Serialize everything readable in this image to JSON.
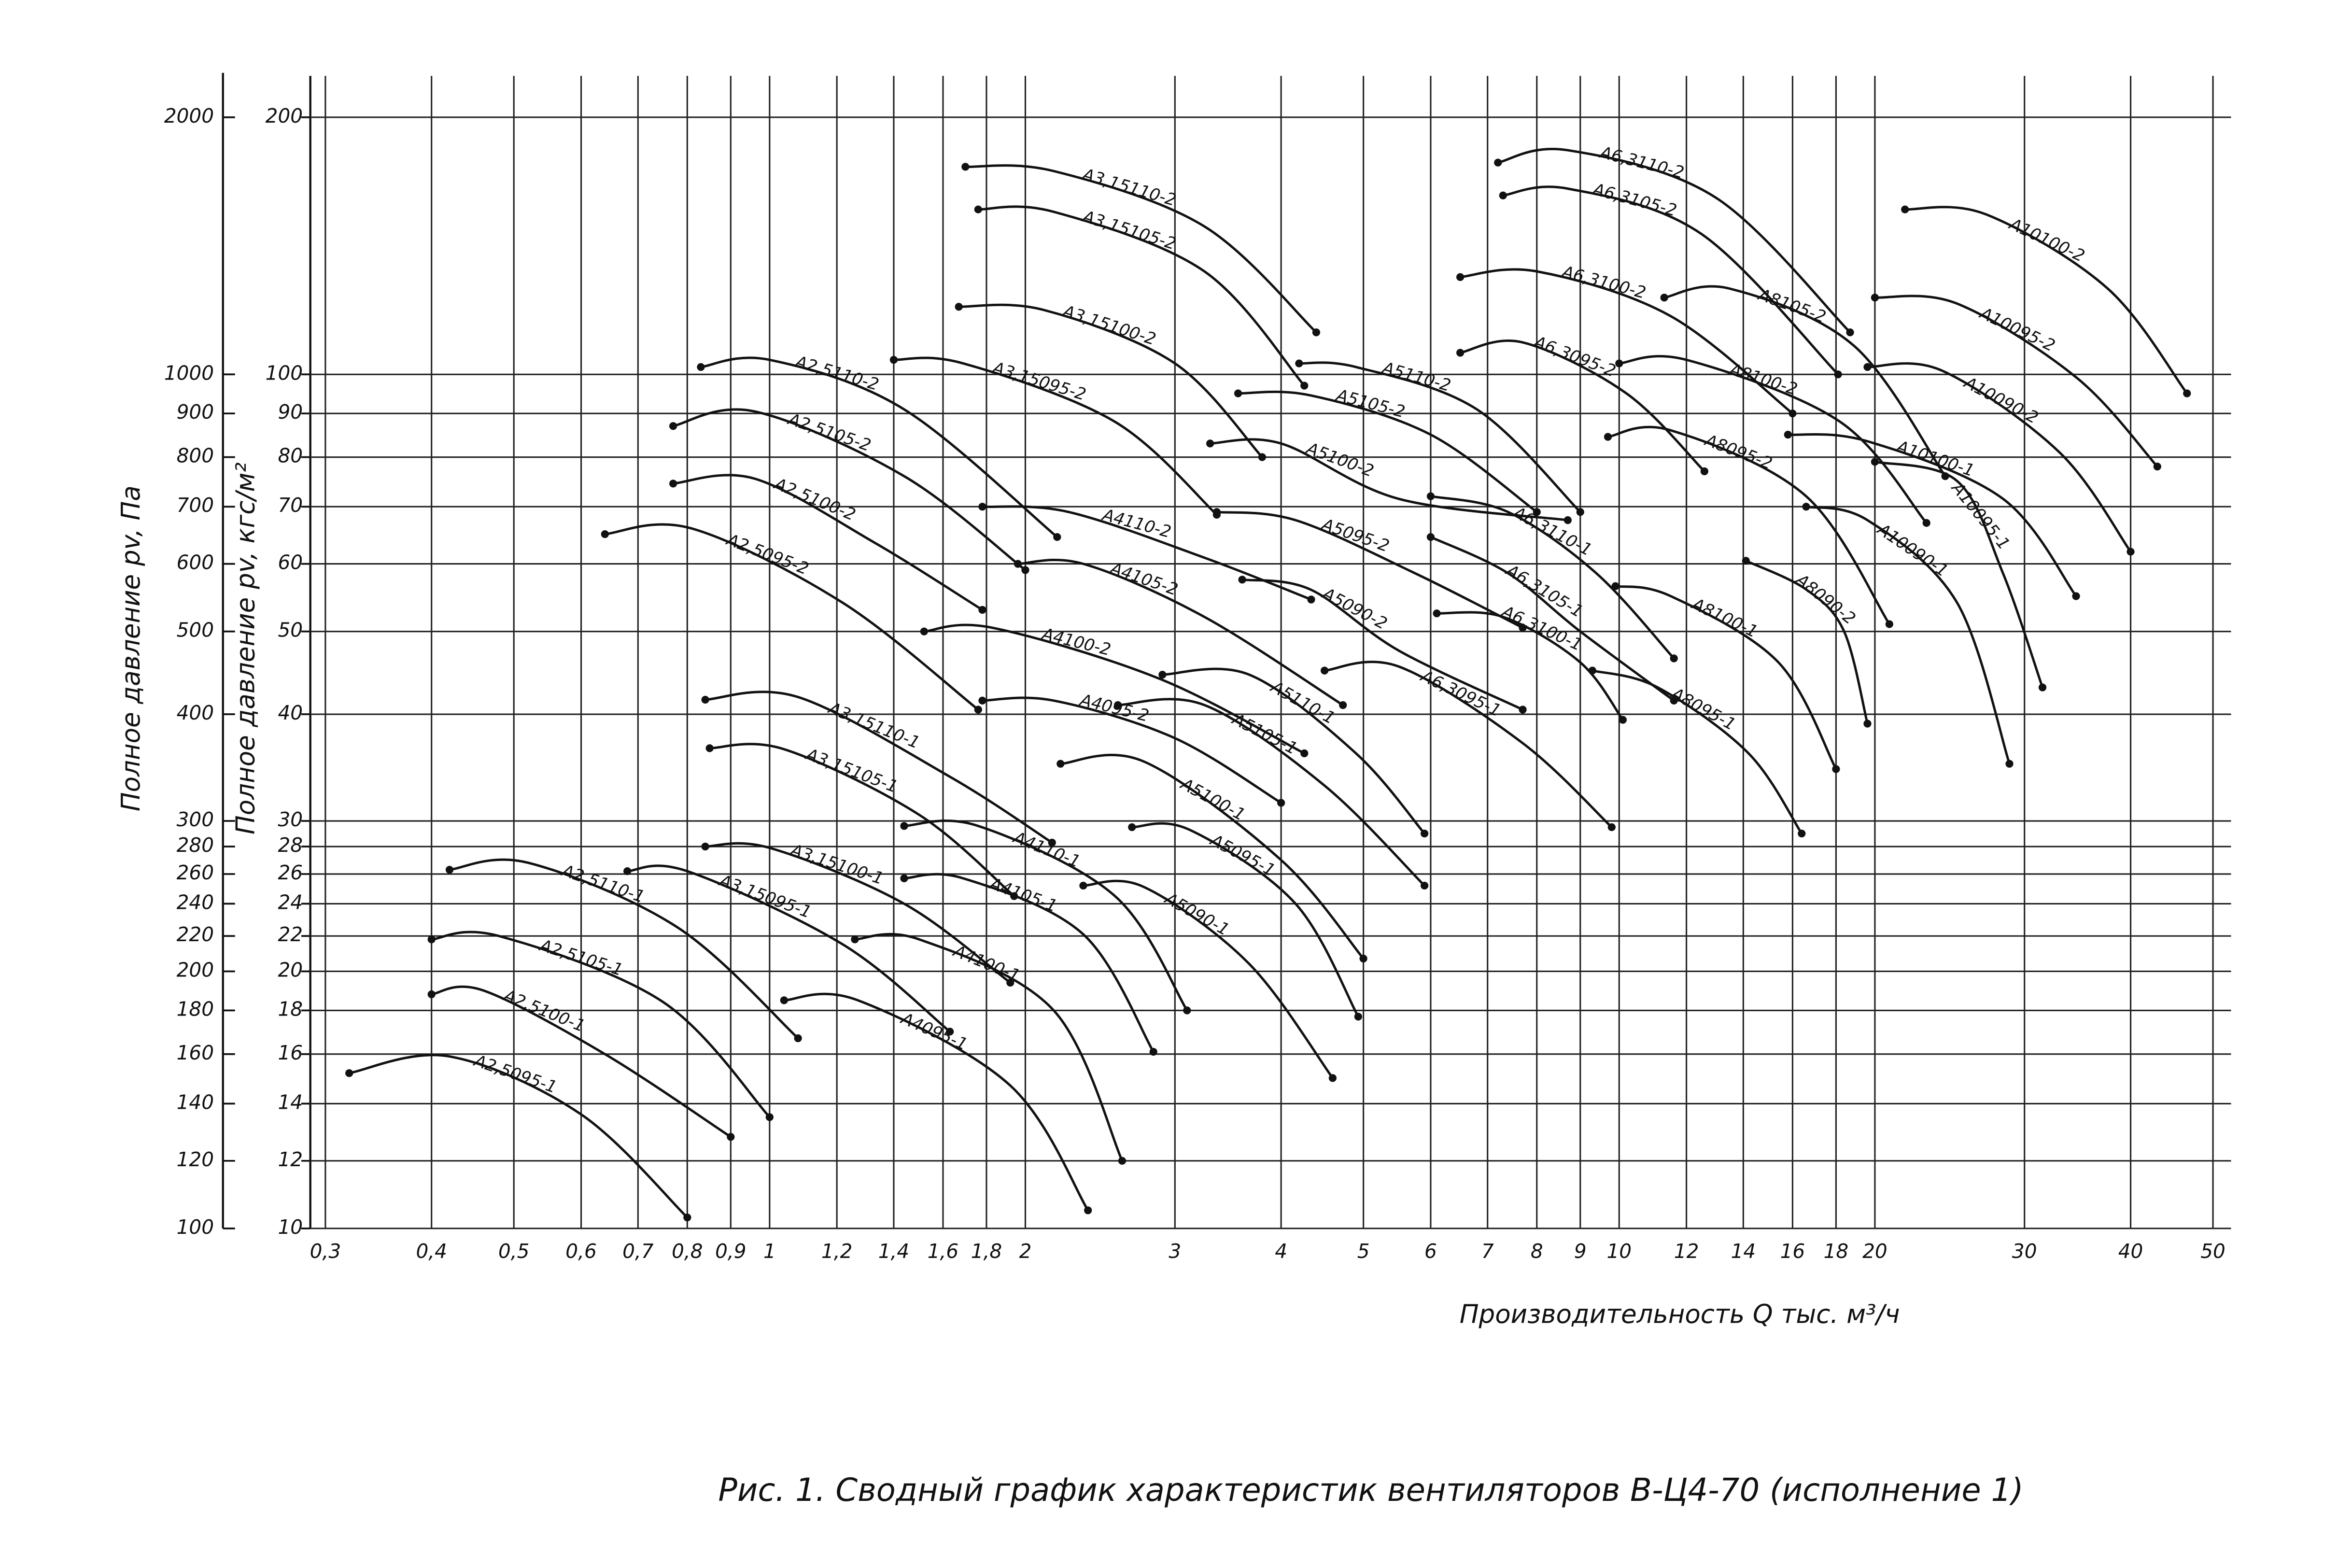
{
  "chart_data": {
    "type": "line",
    "caption": "Рис. 1. Сводный график характеристик вентиляторов В-Ц4-70 (исполнение 1)",
    "x_label": "Производительность Q тыс. м³/ч",
    "y_label": "Полное давление pv, Па",
    "y2_label": "Полное давление pv, кгс/м²",
    "xlog": true,
    "ylog": true,
    "grid": true,
    "color": "#111111",
    "xlim": [
      0.3,
      50
    ],
    "xticks": [
      {
        "value": 0.3,
        "label": "0,3"
      },
      {
        "value": 0.4,
        "label": "0,4"
      },
      {
        "value": 0.5,
        "label": "0,5"
      },
      {
        "value": 0.6,
        "label": "0,6"
      },
      {
        "value": 0.7,
        "label": "0,7"
      },
      {
        "value": 0.8,
        "label": "0,8"
      },
      {
        "value": 0.9,
        "label": "0,9"
      },
      1,
      {
        "value": 1.2,
        "label": "1,2"
      },
      {
        "value": 1.4,
        "label": "1,4"
      },
      {
        "value": 1.6,
        "label": "1,6"
      },
      {
        "value": 1.8,
        "label": "1,8"
      },
      2,
      3,
      4,
      5,
      6,
      7,
      8,
      9,
      10,
      12,
      14,
      16,
      18,
      20,
      30,
      40,
      50
    ],
    "ylim": [
      100,
      2200
    ],
    "yticks": [
      100,
      120,
      140,
      160,
      180,
      200,
      220,
      240,
      260,
      280,
      300,
      400,
      500,
      600,
      700,
      800,
      900,
      1000,
      2000
    ],
    "y2lim": [
      10,
      220
    ],
    "y2ticks": [
      10,
      12,
      14,
      16,
      18,
      20,
      22,
      24,
      26,
      28,
      30,
      40,
      50,
      60,
      70,
      80,
      90,
      100,
      200
    ],
    "series": [
      {
        "name": "А2,5095-1",
        "x": [
          0.32,
          0.42,
          0.6,
          0.8
        ],
        "values": [
          152,
          159,
          136,
          103
        ]
      },
      {
        "name": "А2,5100-1",
        "x": [
          0.4,
          0.46,
          0.64,
          0.9
        ],
        "values": [
          188,
          190,
          160,
          128
        ]
      },
      {
        "name": "А2,5105-1",
        "x": [
          0.4,
          0.48,
          0.75,
          1.0
        ],
        "values": [
          218,
          220,
          184,
          135
        ]
      },
      {
        "name": "А2,5110-1",
        "x": [
          0.42,
          0.52,
          0.78,
          1.08
        ],
        "values": [
          263,
          268,
          225,
          167
        ]
      },
      {
        "name": "А3,15095-1",
        "x": [
          0.68,
          0.8,
          1.22,
          1.63
        ],
        "values": [
          262,
          262,
          215,
          170
        ]
      },
      {
        "name": "А3,15100-1",
        "x": [
          0.84,
          1.0,
          1.44,
          1.92
        ],
        "values": [
          280,
          279,
          240,
          194
        ]
      },
      {
        "name": "А3,15105-1",
        "x": [
          0.85,
          1.04,
          1.5,
          1.94
        ],
        "values": [
          365,
          364,
          305,
          245
        ]
      },
      {
        "name": "А3,15110-1",
        "x": [
          0.84,
          1.08,
          1.63,
          2.15
        ],
        "values": [
          416,
          419,
          338,
          283
        ]
      },
      {
        "name": "А4095-1",
        "x": [
          1.04,
          1.27,
          1.92,
          2.37
        ],
        "values": [
          185,
          185,
          147,
          105
        ]
      },
      {
        "name": "А4100-1",
        "x": [
          1.26,
          1.5,
          2.16,
          2.6
        ],
        "values": [
          218,
          218,
          180,
          120
        ]
      },
      {
        "name": "А4105-1",
        "x": [
          1.44,
          1.69,
          2.34,
          2.83
        ],
        "values": [
          257,
          257,
          221,
          161
        ]
      },
      {
        "name": "А4110-1",
        "x": [
          1.44,
          1.76,
          2.55,
          3.1
        ],
        "values": [
          296,
          296,
          245,
          180
        ]
      },
      {
        "name": "А5090-1",
        "x": [
          2.34,
          2.76,
          3.67,
          4.6
        ],
        "values": [
          252,
          251,
          204,
          150
        ]
      },
      {
        "name": "А5095-1",
        "x": [
          2.67,
          3.12,
          4.16,
          4.93
        ],
        "values": [
          295,
          293,
          240,
          177
        ]
      },
      {
        "name": "А5100-1",
        "x": [
          2.2,
          2.76,
          4.0,
          5.0
        ],
        "values": [
          350,
          352,
          270,
          207
        ]
      },
      {
        "name": "А5105-1",
        "x": [
          2.57,
          3.25,
          4.5,
          5.9
        ],
        "values": [
          410,
          410,
          330,
          252
        ]
      },
      {
        "name": "А5110-1",
        "x": [
          2.9,
          3.67,
          4.9,
          5.9
        ],
        "values": [
          445,
          445,
          360,
          290
        ]
      },
      {
        "name": "А6,3095-1",
        "x": [
          4.5,
          5.5,
          7.7,
          9.8
        ],
        "values": [
          450,
          455,
          370,
          295
        ]
      },
      {
        "name": "А6,3100-1",
        "x": [
          6.1,
          7.3,
          9.0,
          10.1
        ],
        "values": [
          525,
          520,
          460,
          394
        ]
      },
      {
        "name": "А6,3105-1",
        "x": [
          6.0,
          7.4,
          9.0,
          11.6
        ],
        "values": [
          645,
          585,
          500,
          415
        ]
      },
      {
        "name": "А6,3110-1",
        "x": [
          6.0,
          7.4,
          9.4,
          11.6
        ],
        "values": [
          720,
          690,
          585,
          465
        ]
      },
      {
        "name": "А8095-1",
        "x": [
          9.3,
          11.1,
          14.2,
          16.4
        ],
        "values": [
          450,
          430,
          360,
          290
        ]
      },
      {
        "name": "А8100-1",
        "x": [
          9.9,
          11.5,
          15.4,
          18
        ],
        "values": [
          565,
          550,
          460,
          345
        ]
      },
      {
        "name": "А10090-1",
        "x": [
          16.6,
          19.6,
          25,
          28.8
        ],
        "values": [
          700,
          675,
          540,
          350
        ]
      },
      {
        "name": "А10095-1",
        "x": [
          20,
          25,
          28.3,
          31.5
        ],
        "values": [
          790,
          750,
          585,
          430
        ]
      },
      {
        "name": "А10100-1",
        "x": [
          15.8,
          19.6,
          28.3,
          34.5
        ],
        "values": [
          850,
          835,
          715,
          550
        ]
      },
      {
        "name": "А2,5095-2",
        "x": [
          0.64,
          0.81,
          1.22,
          1.76
        ],
        "values": [
          650,
          660,
          540,
          405
        ]
      },
      {
        "name": "А2,5100-2",
        "x": [
          0.77,
          0.96,
          1.33,
          1.78
        ],
        "values": [
          745,
          755,
          635,
          530
        ]
      },
      {
        "name": "А2,5105-2",
        "x": [
          0.77,
          0.96,
          1.44,
          2.0
        ],
        "values": [
          870,
          905,
          760,
          590
        ]
      },
      {
        "name": "А2,5110-2",
        "x": [
          0.83,
          1.0,
          1.44,
          2.18
        ],
        "values": [
          1020,
          1040,
          910,
          645
        ]
      },
      {
        "name": "А3,15095-2",
        "x": [
          1.4,
          1.69,
          2.55,
          3.36
        ],
        "values": [
          1040,
          1030,
          880,
          685
        ]
      },
      {
        "name": "А3,15100-2",
        "x": [
          1.67,
          2.1,
          3.0,
          3.8
        ],
        "values": [
          1200,
          1190,
          1030,
          800
        ]
      },
      {
        "name": "А3,15105-2",
        "x": [
          1.76,
          2.16,
          3.25,
          4.26
        ],
        "values": [
          1560,
          1550,
          1320,
          970
        ]
      },
      {
        "name": "А3,15110-2",
        "x": [
          1.7,
          2.16,
          3.25,
          4.4
        ],
        "values": [
          1750,
          1730,
          1490,
          1120
        ]
      },
      {
        "name": "А4095-2",
        "x": [
          1.78,
          2.16,
          3.0,
          4.0
        ],
        "values": [
          415,
          415,
          375,
          315
        ]
      },
      {
        "name": "А4100-2",
        "x": [
          1.52,
          1.83,
          2.88,
          4.26
        ],
        "values": [
          500,
          505,
          440,
          360
        ]
      },
      {
        "name": "А4105-2",
        "x": [
          1.96,
          2.34,
          3.25,
          4.73
        ],
        "values": [
          600,
          600,
          520,
          410
        ]
      },
      {
        "name": "А4110-2",
        "x": [
          1.78,
          2.25,
          3.25,
          4.34
        ],
        "values": [
          700,
          690,
          610,
          545
        ]
      },
      {
        "name": "А5090-2",
        "x": [
          3.6,
          4.33,
          5.5,
          7.7
        ],
        "values": [
          575,
          560,
          475,
          405
        ]
      },
      {
        "name": "А5095-2",
        "x": [
          3.36,
          4.16,
          5.75,
          7.7
        ],
        "values": [
          690,
          675,
          585,
          505
        ]
      },
      {
        "name": "А5100-2",
        "x": [
          3.3,
          4.0,
          5.5,
          8.7
        ],
        "values": [
          830,
          830,
          715,
          675
        ]
      },
      {
        "name": "А5105-2",
        "x": [
          3.56,
          4.33,
          6.0,
          8.0
        ],
        "values": [
          950,
          945,
          850,
          690
        ]
      },
      {
        "name": "А5110-2",
        "x": [
          4.2,
          4.9,
          6.8,
          9.0
        ],
        "values": [
          1030,
          1020,
          910,
          690
        ]
      },
      {
        "name": "А6,3095-2",
        "x": [
          6.5,
          7.7,
          10.2,
          12.6
        ],
        "values": [
          1060,
          1090,
          950,
          770
        ]
      },
      {
        "name": "А6,3100-2",
        "x": [
          6.5,
          8.0,
          11.5,
          16.0
        ],
        "values": [
          1300,
          1320,
          1170,
          900
        ]
      },
      {
        "name": "А6,3105-2",
        "x": [
          7.3,
          8.7,
          12.5,
          18.1
        ],
        "values": [
          1620,
          1650,
          1460,
          1000
        ]
      },
      {
        "name": "А6,3110-2",
        "x": [
          7.2,
          8.7,
          13.0,
          18.7
        ],
        "values": [
          1770,
          1830,
          1610,
          1120
        ]
      },
      {
        "name": "А8090-2",
        "x": [
          14.1,
          16.6,
          18.4,
          19.6
        ],
        "values": [
          605,
          560,
          500,
          390
        ]
      },
      {
        "name": "А8095-2",
        "x": [
          9.7,
          11.5,
          16.6,
          20.8
        ],
        "values": [
          845,
          860,
          720,
          510
        ]
      },
      {
        "name": "А8100-2",
        "x": [
          10.0,
          12.0,
          18.2,
          23.0
        ],
        "values": [
          1030,
          1040,
          880,
          670
        ]
      },
      {
        "name": "А8105-2",
        "x": [
          11.3,
          13.5,
          18.9,
          24.2
        ],
        "values": [
          1230,
          1260,
          1080,
          760
        ]
      },
      {
        "name": "А10090-2",
        "x": [
          19.6,
          24,
          33,
          40
        ],
        "values": [
          1020,
          1010,
          810,
          620
        ]
      },
      {
        "name": "А10095-2",
        "x": [
          20,
          25,
          34.6,
          43
        ],
        "values": [
          1230,
          1210,
          990,
          780
        ]
      },
      {
        "name": "А10100-2",
        "x": [
          21.7,
          27,
          37.6,
          46.6
        ],
        "values": [
          1560,
          1540,
          1260,
          950
        ]
      }
    ]
  }
}
